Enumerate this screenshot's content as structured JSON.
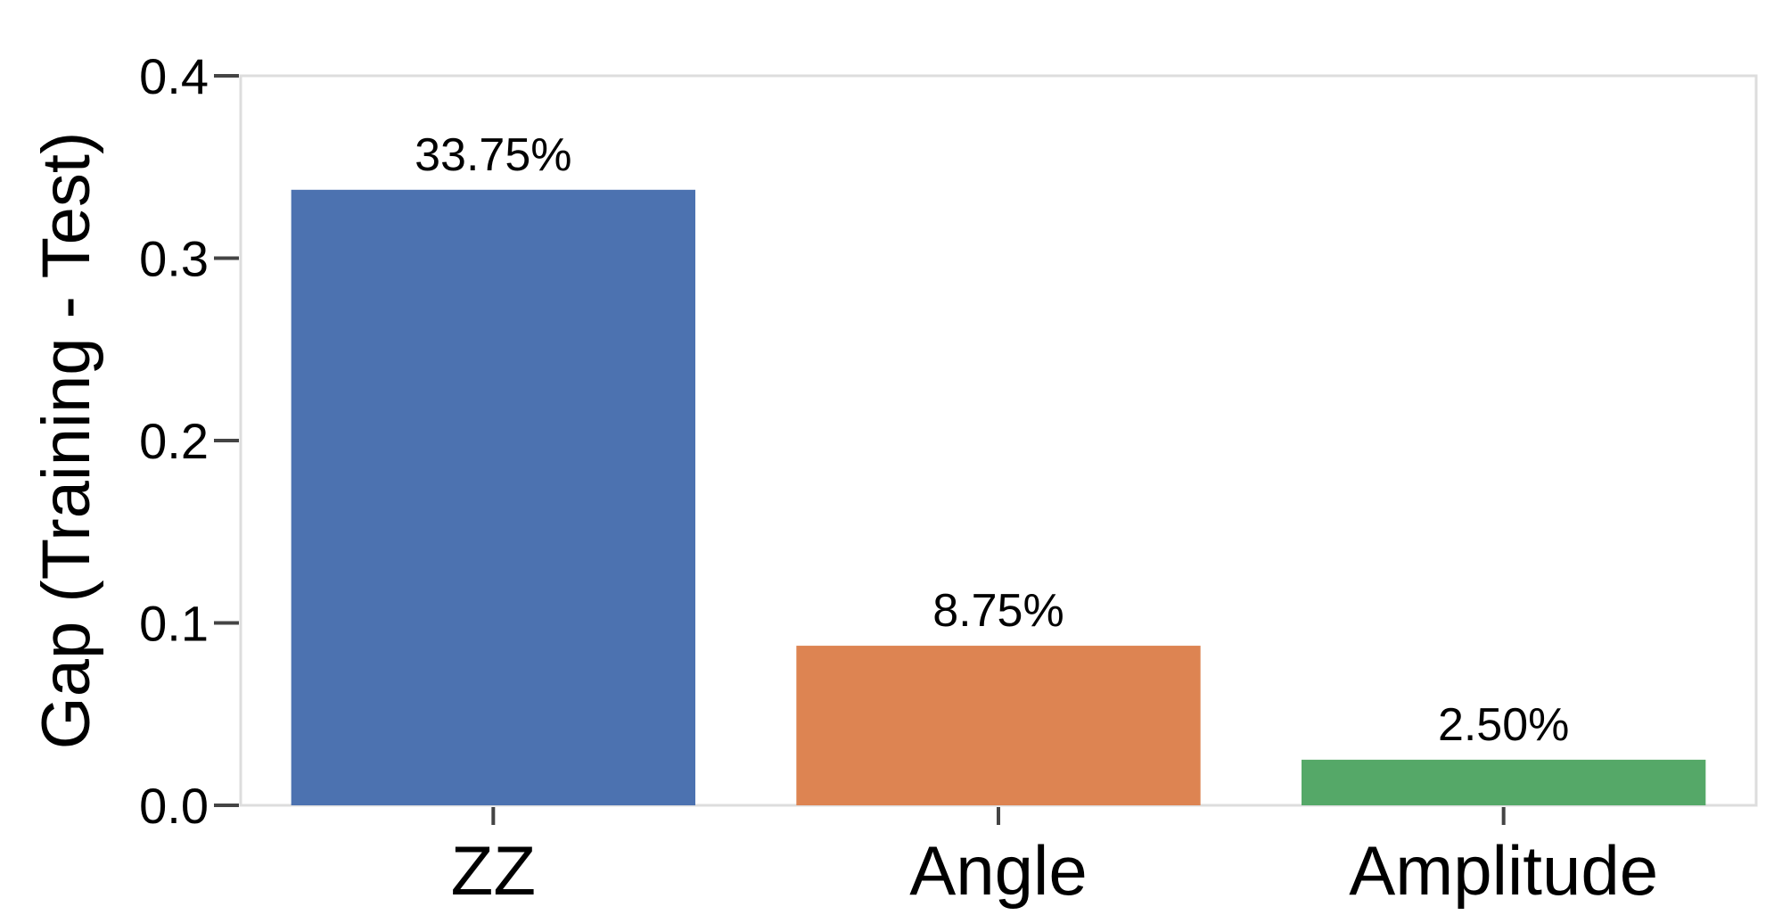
{
  "chart_data": {
    "type": "bar",
    "title": "",
    "xlabel": "",
    "ylabel": "Gap (Training - Test)",
    "categories": [
      "ZZ",
      "Angle",
      "Amplitude"
    ],
    "values": [
      0.3375,
      0.0875,
      0.025
    ],
    "data_labels": [
      "33.75%",
      "8.75%",
      "2.50%"
    ],
    "colors": [
      "#4c72b0",
      "#dd8452",
      "#55a868"
    ],
    "ylim": [
      0,
      0.4
    ],
    "yticks": [
      0.0,
      0.1,
      0.2,
      0.3,
      0.4
    ],
    "ytick_labels": [
      "0.0",
      "0.1",
      "0.2",
      "0.3",
      "0.4"
    ],
    "grid": false,
    "frame_color": "#dddddd"
  }
}
